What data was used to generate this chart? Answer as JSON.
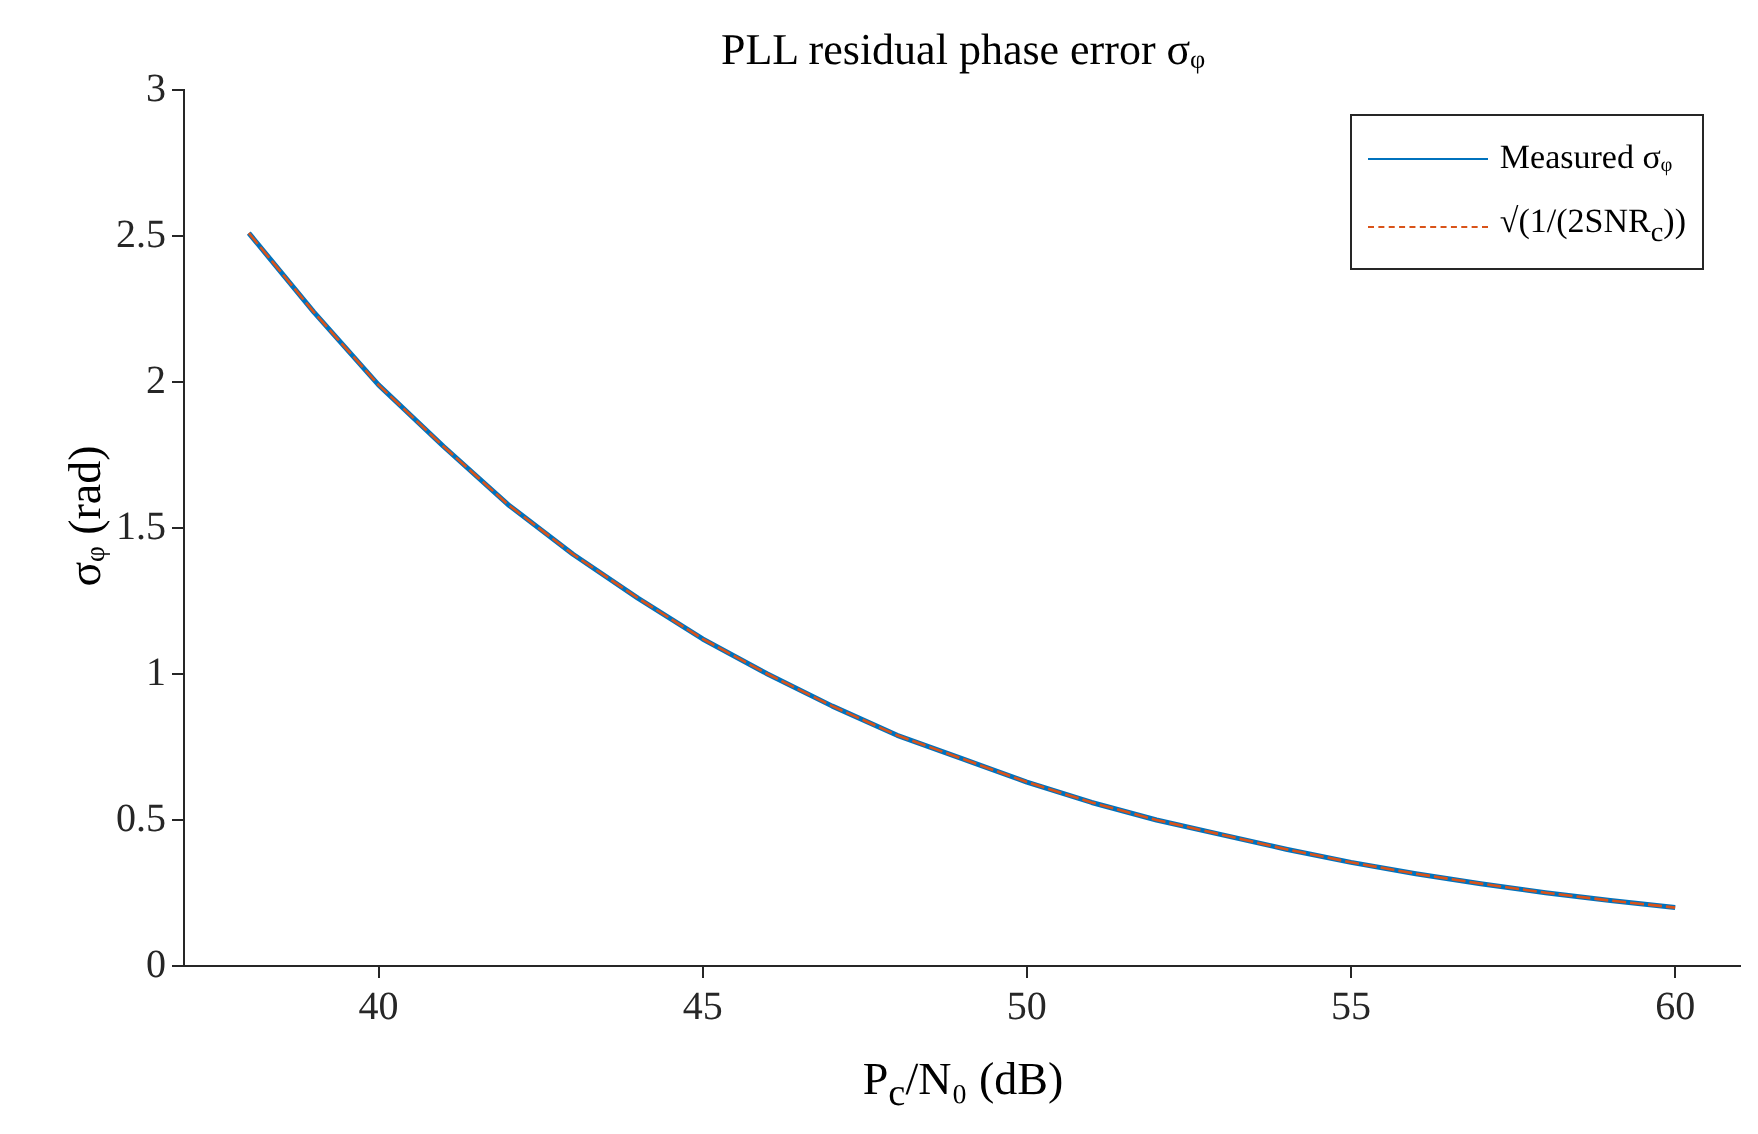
{
  "chart_data": {
    "type": "line",
    "title": "PLL residual phase error σᵩ",
    "xlabel": "P$_{c}$/N₀ (dB)",
    "ylabel": "σᵩ (rad)",
    "x": [
      38,
      39,
      40,
      41,
      42,
      43,
      44,
      45,
      46,
      47,
      48,
      49,
      50,
      51,
      52,
      53,
      54,
      55,
      56,
      57,
      58,
      59,
      60
    ],
    "series": [
      {
        "name": "Measured σᵩ",
        "color": "#0072bd",
        "line_style": "solid",
        "values": [
          2.51,
          2.24,
          1.99,
          1.78,
          1.58,
          1.41,
          1.26,
          1.12,
          1.0,
          0.89,
          0.79,
          0.71,
          0.63,
          0.56,
          0.5,
          0.45,
          0.4,
          0.355,
          0.316,
          0.282,
          0.251,
          0.224,
          0.2
        ]
      },
      {
        "name": "√(1/(2SNR$_{c}$))",
        "color": "#d95319",
        "line_style": "dashed",
        "values": [
          2.51,
          2.24,
          1.99,
          1.78,
          1.58,
          1.41,
          1.26,
          1.12,
          1.0,
          0.89,
          0.79,
          0.71,
          0.63,
          0.56,
          0.5,
          0.45,
          0.4,
          0.355,
          0.316,
          0.282,
          0.251,
          0.224,
          0.2
        ]
      }
    ],
    "xlim": [
      37,
      61
    ],
    "xticks": [
      40,
      45,
      50,
      55,
      60
    ],
    "ylim": [
      0,
      3
    ],
    "yticks": [
      0,
      0.5,
      1,
      1.5,
      2,
      2.5,
      3
    ],
    "grid": false,
    "legend": "top right",
    "marker": "none"
  }
}
